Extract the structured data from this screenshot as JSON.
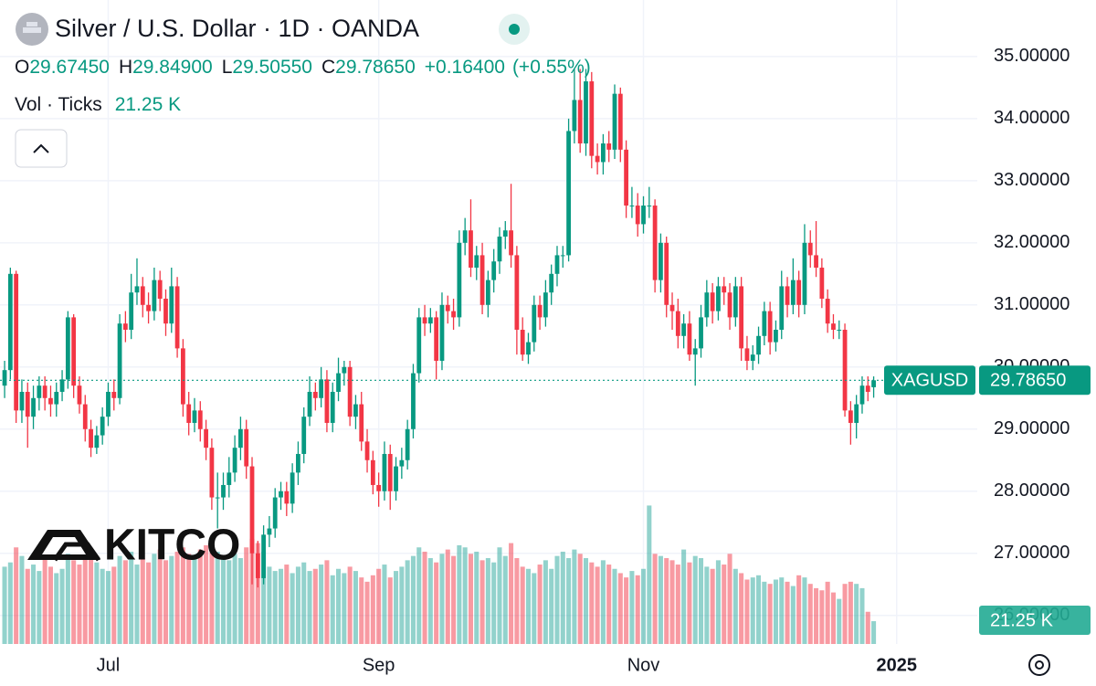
{
  "chart_data": {
    "type": "candlestick",
    "title": "Silver / U.S. Dollar · 1D · OANDA",
    "legend": {
      "ohlc": [
        {
          "key": "O",
          "text": "29.67450"
        },
        {
          "key": "H",
          "text": "29.84900"
        },
        {
          "key": "L",
          "text": "29.50550"
        },
        {
          "key": "C",
          "text": "29.78650"
        }
      ],
      "change": "+0.16400",
      "change_pct": "(+0.55%)",
      "vol_title": "Vol · Ticks",
      "vol_text": "21.25 K"
    },
    "symbol": "XAGUSD",
    "last_label": "29.78650",
    "volume_label": "21.25 K",
    "watermark": "KITCO",
    "up_color": "#089981",
    "down_color": "#f23645",
    "up_volume_color": "rgba(38,166,154,0.5)",
    "down_volume_color": "rgba(242,54,69,0.5)",
    "grid": true,
    "xlim": [
      -0.8,
      169
    ],
    "xticks": [
      {
        "value": 18,
        "label": "Jul"
      },
      {
        "value": 65,
        "label": "Sep"
      },
      {
        "value": 111,
        "label": "Nov"
      },
      {
        "value": 155,
        "label": "2025"
      }
    ],
    "ylim": [
      25.54,
      35.91
    ],
    "yticks": [
      {
        "value": 26,
        "label": "26.00000"
      },
      {
        "value": 27,
        "label": "27.00000"
      },
      {
        "value": 28,
        "label": "28.00000"
      },
      {
        "value": 29,
        "label": "29.00000"
      },
      {
        "value": 30,
        "label": "30.00000"
      },
      {
        "value": 31,
        "label": "31.00000"
      },
      {
        "value": 32,
        "label": "32.00000"
      },
      {
        "value": 33,
        "label": "33.00000"
      },
      {
        "value": 34,
        "label": "34.00000"
      },
      {
        "value": 35,
        "label": "35.00000"
      }
    ],
    "volume_lim": [
      0,
      600000
    ],
    "open": [
      29.7,
      29.95,
      31.5,
      29.3,
      29.6,
      29.2,
      29.5,
      29.7,
      29.5,
      29.4,
      29.6,
      29.8,
      30.8,
      29.7,
      29.4,
      29.0,
      28.7,
      28.9,
      29.2,
      29.6,
      29.5,
      30.7,
      30.6,
      31.2,
      31.3,
      31.0,
      30.9,
      31.4,
      31.1,
      30.7,
      31.3,
      30.3,
      29.4,
      29.1,
      29.3,
      29.0,
      28.7,
      27.9,
      27.9,
      28.1,
      28.3,
      28.7,
      29.0,
      28.4,
      27.0,
      26.6,
      27.3,
      27.4,
      27.9,
      28.0,
      27.8,
      28.3,
      28.6,
      29.2,
      29.6,
      29.5,
      29.8,
      29.1,
      29.6,
      29.9,
      30.0,
      29.2,
      29.4,
      28.8,
      28.5,
      28.1,
      28.0,
      28.6,
      28.0,
      28.4,
      28.5,
      29.0,
      29.9,
      30.8,
      30.7,
      30.8,
      30.1,
      31.0,
      30.9,
      30.8,
      32.0,
      32.2,
      31.6,
      31.8,
      31.0,
      31.4,
      31.7,
      32.1,
      32.2,
      31.8,
      30.6,
      30.2,
      30.4,
      31.0,
      30.8,
      31.2,
      31.5,
      31.8,
      31.8,
      33.8,
      34.3,
      33.6,
      34.6,
      33.4,
      33.3,
      33.6,
      33.5,
      34.4,
      33.5,
      32.6,
      32.6,
      32.3,
      32.6,
      32.6,
      31.4,
      32.0,
      31.0,
      30.9,
      30.5,
      30.7,
      30.2,
      30.3,
      30.8,
      31.2,
      30.9,
      31.3,
      31.2,
      30.8,
      31.3,
      30.3,
      30.1,
      30.2,
      30.5,
      30.9,
      30.4,
      30.6,
      31.3,
      31.0,
      31.4,
      31.0,
      32.0,
      31.8,
      31.6,
      31.1,
      30.7,
      30.6,
      30.6,
      29.3,
      29.1,
      29.4,
      29.7,
      29.6745
    ],
    "high": [
      30.1,
      31.6,
      31.55,
      29.8,
      29.75,
      29.7,
      29.85,
      29.85,
      29.7,
      29.75,
      29.95,
      30.9,
      30.85,
      29.85,
      29.55,
      29.15,
      29.05,
      29.35,
      29.75,
      29.8,
      30.85,
      30.9,
      31.5,
      31.75,
      31.45,
      31.2,
      31.6,
      31.55,
      31.25,
      31.6,
      31.45,
      30.45,
      29.6,
      29.5,
      29.45,
      29.15,
      28.85,
      28.3,
      28.3,
      28.55,
      28.9,
      29.2,
      29.15,
      28.55,
      27.2,
      27.45,
      27.6,
      28.05,
      28.15,
      28.15,
      28.45,
      28.8,
      29.35,
      29.85,
      29.75,
      30.0,
      29.95,
      29.75,
      30.15,
      30.1,
      30.1,
      29.55,
      29.6,
      29.0,
      28.65,
      28.3,
      28.8,
      28.75,
      28.55,
      28.7,
      29.15,
      30.05,
      30.95,
      31.0,
      30.95,
      30.9,
      31.2,
      31.15,
      31.1,
      32.2,
      32.4,
      32.7,
      31.95,
      32.0,
      31.55,
      31.9,
      32.25,
      32.35,
      32.95,
      31.95,
      30.8,
      30.55,
      31.15,
      31.15,
      31.4,
      31.65,
      31.95,
      31.95,
      34.0,
      34.8,
      34.8,
      34.8,
      34.75,
      33.6,
      33.75,
      33.8,
      34.55,
      34.5,
      33.65,
      32.9,
      32.8,
      32.75,
      32.9,
      32.7,
      32.15,
      32.1,
      31.2,
      31.1,
      30.85,
      30.9,
      30.45,
      31.0,
      31.4,
      31.35,
      31.45,
      31.45,
      31.35,
      31.45,
      31.45,
      30.5,
      30.35,
      30.65,
      31.05,
      31.05,
      30.75,
      31.55,
      31.45,
      31.75,
      31.55,
      32.3,
      32.2,
      32.35,
      31.75,
      31.25,
      30.85,
      30.75,
      30.7,
      29.45,
      29.55,
      29.85,
      29.85,
      29.849
    ],
    "low": [
      29.5,
      29.8,
      29.1,
      29.1,
      28.7,
      29.0,
      29.3,
      29.3,
      29.2,
      29.2,
      29.45,
      29.65,
      29.5,
      29.25,
      28.8,
      28.55,
      28.6,
      28.75,
      29.05,
      29.3,
      29.4,
      30.4,
      30.45,
      31.0,
      30.8,
      30.7,
      30.75,
      30.9,
      30.5,
      30.55,
      30.15,
      29.2,
      28.9,
      28.95,
      28.8,
      28.5,
      27.7,
      27.4,
      27.7,
      27.9,
      28.15,
      28.5,
      28.2,
      26.5,
      26.45,
      26.5,
      27.1,
      27.25,
      27.7,
      27.6,
      27.65,
      28.1,
      28.45,
      29.05,
      29.3,
      29.35,
      28.95,
      28.95,
      29.45,
      29.7,
      29.05,
      29.0,
      28.65,
      28.3,
      27.95,
      27.75,
      27.85,
      27.7,
      27.85,
      28.2,
      28.35,
      28.85,
      29.75,
      30.5,
      30.55,
      29.8,
      29.95,
      30.7,
      30.6,
      30.65,
      31.8,
      31.45,
      31.4,
      30.85,
      30.8,
      31.2,
      31.5,
      31.9,
      31.6,
      30.2,
      30.1,
      30.05,
      30.25,
      30.6,
      30.65,
      31.0,
      31.3,
      31.6,
      31.7,
      33.6,
      33.45,
      33.4,
      33.2,
      33.1,
      33.1,
      33.3,
      33.35,
      33.3,
      32.4,
      32.4,
      32.1,
      32.15,
      32.4,
      31.2,
      31.2,
      30.8,
      30.6,
      30.3,
      30.3,
      30.1,
      29.7,
      30.15,
      30.65,
      30.7,
      30.75,
      31.0,
      30.6,
      30.65,
      30.1,
      29.95,
      29.95,
      30.05,
      30.35,
      30.2,
      30.25,
      30.45,
      30.8,
      30.85,
      30.8,
      30.85,
      31.6,
      31.45,
      30.95,
      30.55,
      30.45,
      30.45,
      29.2,
      28.75,
      28.85,
      29.25,
      29.45,
      29.5055
    ],
    "close": [
      29.95,
      31.5,
      29.3,
      29.6,
      29.2,
      29.5,
      29.7,
      29.5,
      29.4,
      29.6,
      29.8,
      30.8,
      29.7,
      29.4,
      29.0,
      28.7,
      28.9,
      29.2,
      29.6,
      29.5,
      30.7,
      30.6,
      31.2,
      31.3,
      31.0,
      30.9,
      31.4,
      31.1,
      30.7,
      31.3,
      30.3,
      29.4,
      29.1,
      29.3,
      29.0,
      28.7,
      27.9,
      27.9,
      28.1,
      28.3,
      28.7,
      29.0,
      28.4,
      27.0,
      26.6,
      27.3,
      27.4,
      27.9,
      28.0,
      27.8,
      28.3,
      28.6,
      29.2,
      29.6,
      29.5,
      29.8,
      29.1,
      29.6,
      29.9,
      30.0,
      29.2,
      29.4,
      28.8,
      28.5,
      28.1,
      28.0,
      28.6,
      28.0,
      28.4,
      28.5,
      29.0,
      29.9,
      30.8,
      30.7,
      30.8,
      30.1,
      31.0,
      30.9,
      30.8,
      32.0,
      32.2,
      31.6,
      31.8,
      31.0,
      31.4,
      31.7,
      32.1,
      32.2,
      31.8,
      30.6,
      30.2,
      30.4,
      31.0,
      30.8,
      31.2,
      31.5,
      31.8,
      31.8,
      33.8,
      34.3,
      33.6,
      34.6,
      33.4,
      33.3,
      33.6,
      33.5,
      34.4,
      33.5,
      32.6,
      32.6,
      32.3,
      32.6,
      32.6,
      31.4,
      32.0,
      31.0,
      30.9,
      30.5,
      30.7,
      30.2,
      30.3,
      30.8,
      31.2,
      30.9,
      31.3,
      31.2,
      30.8,
      31.3,
      30.3,
      30.1,
      30.2,
      30.5,
      30.9,
      30.4,
      30.6,
      31.3,
      31.0,
      31.4,
      31.0,
      32.0,
      31.8,
      31.6,
      31.1,
      30.7,
      30.6,
      30.6,
      29.3,
      29.1,
      29.4,
      29.7,
      29.6,
      29.7865
    ],
    "volume": [
      72000,
      76000,
      90000,
      82000,
      70000,
      74000,
      68000,
      80000,
      72000,
      66000,
      70000,
      84000,
      78000,
      74000,
      80000,
      86000,
      76000,
      70000,
      68000,
      72000,
      82000,
      78000,
      86000,
      74000,
      80000,
      76000,
      84000,
      88000,
      78000,
      82000,
      86000,
      90000,
      84000,
      80000,
      88000,
      92000,
      96000,
      86000,
      82000,
      78000,
      84000,
      80000,
      90000,
      98000,
      94000,
      86000,
      72000,
      68000,
      70000,
      74000,
      66000,
      72000,
      76000,
      68000,
      70000,
      74000,
      78000,
      64000,
      70000,
      66000,
      72000,
      68000,
      62000,
      58000,
      64000,
      70000,
      74000,
      62000,
      68000,
      72000,
      78000,
      82000,
      90000,
      86000,
      80000,
      76000,
      84000,
      88000,
      82000,
      92000,
      90000,
      84000,
      86000,
      78000,
      80000,
      76000,
      90000,
      82000,
      94000,
      80000,
      72000,
      70000,
      66000,
      74000,
      78000,
      70000,
      82000,
      86000,
      80000,
      88000,
      84000,
      80000,
      76000,
      72000,
      78000,
      74000,
      70000,
      66000,
      62000,
      68000,
      64000,
      70000,
      129000,
      84000,
      82000,
      80000,
      78000,
      74000,
      88000,
      76000,
      82000,
      80000,
      72000,
      70000,
      78000,
      74000,
      84000,
      70000,
      66000,
      60000,
      62000,
      64000,
      58000,
      56000,
      60000,
      62000,
      58000,
      54000,
      64000,
      62000,
      56000,
      52000,
      50000,
      58000,
      48000,
      42000,
      56000,
      58000,
      56000,
      52000,
      30000,
      21250
    ]
  }
}
